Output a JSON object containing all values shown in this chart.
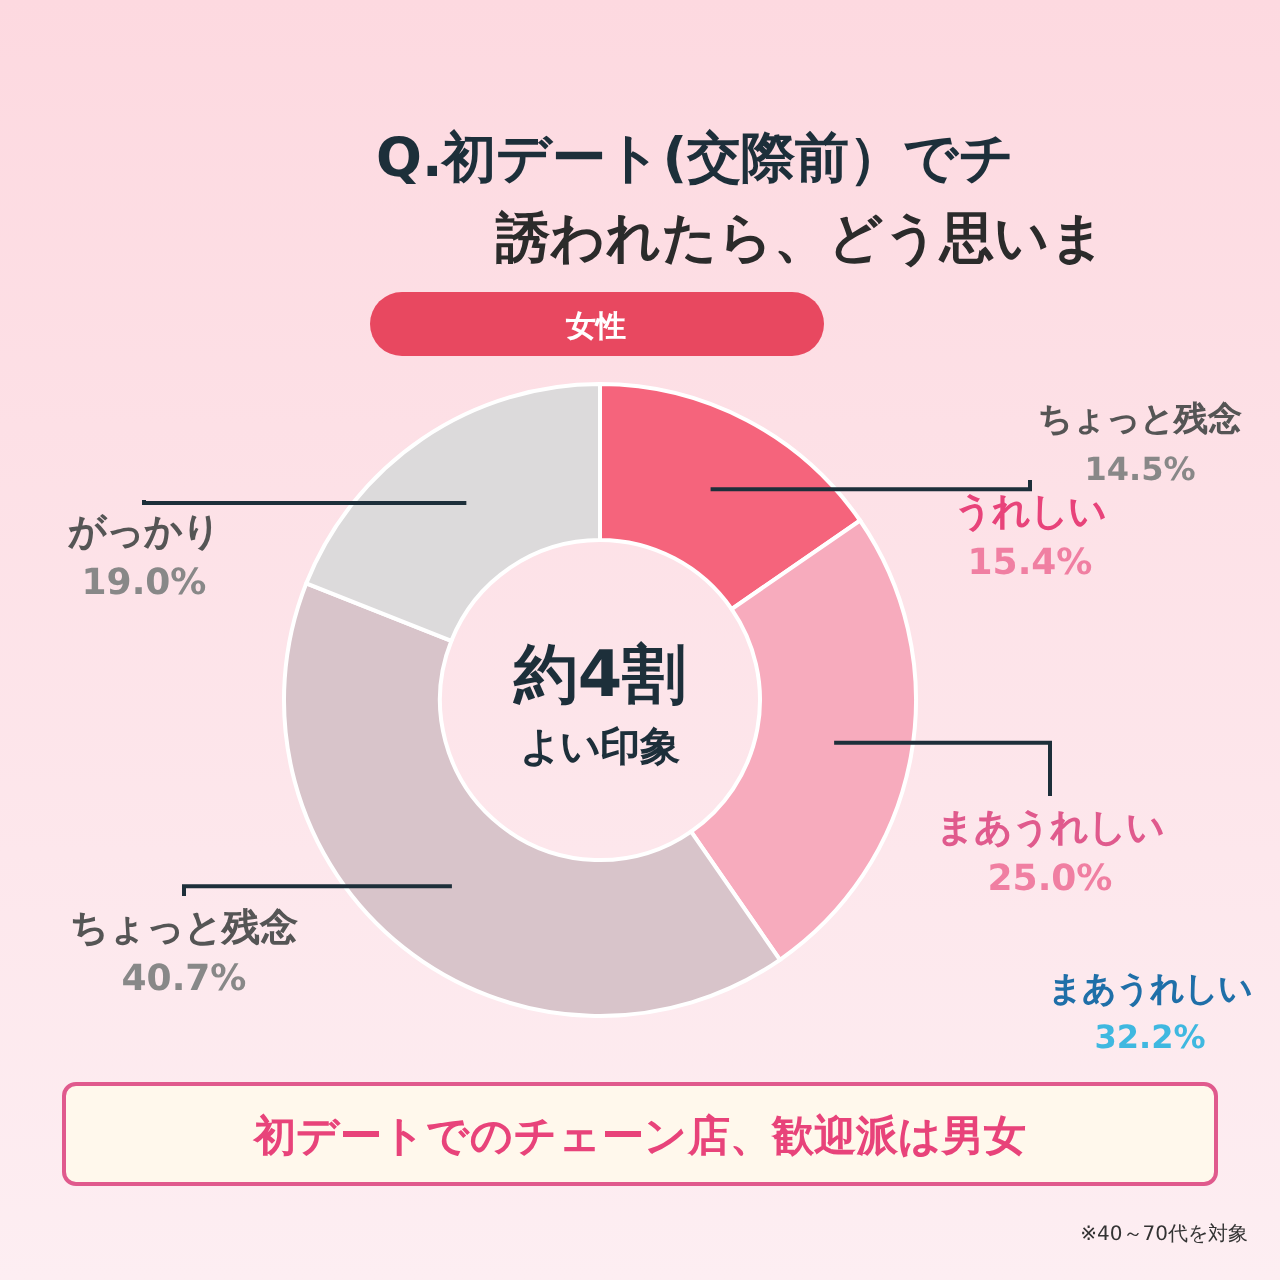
{
  "chart_data": [
    {
      "type": "donut",
      "title": "Q.初デート(交際前）でチ",
      "subtitle": "誘われたら、どう思いま",
      "xlabel": "女性",
      "categories": [
        "うれしい",
        "まあうれしい",
        "ちょっと残念",
        "がっかり"
      ],
      "values": [
        15.4,
        25.0,
        40.7,
        19.0
      ],
      "colors": [
        "#f5647c",
        "#f7abbd",
        "#d8c4ca",
        "#dcdadb"
      ],
      "value_labels": [
        "15.4%",
        "25.0%",
        "40.7%",
        "19.0%"
      ],
      "annotations": [
        "約4割",
        "よい印象",
        "初デートでのチェーン店、歓迎派は男女",
        "※40～70代を対象"
      ]
    },
    {
      "type": "other",
      "annotations": [
        "ちょっと残念",
        "14.5%",
        "まあうれしい",
        "32.2%"
      ]
    }
  ]
}
